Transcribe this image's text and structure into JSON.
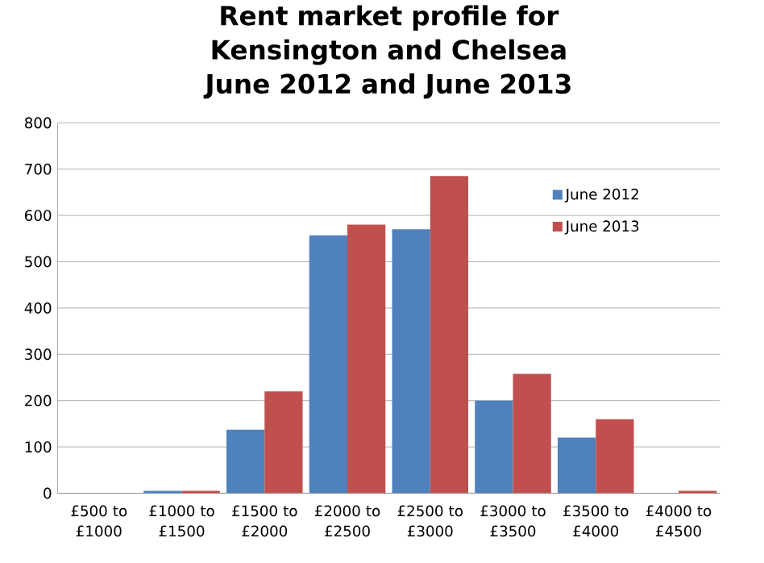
{
  "chart_data": {
    "type": "bar",
    "title": "Rent market profile for Kensington and Chelsea June 2012 and June 2013",
    "categories": [
      "£500 to £1000",
      "£1000 to £1500",
      "£1500 to £2000",
      "£2000 to £2500",
      "£2500 to £3000",
      "£3000 to £3500",
      "£3500 to £4000",
      "£4000 to £4500"
    ],
    "series": [
      {
        "name": "June 2012",
        "color": "#4f81bd",
        "values": [
          0,
          5,
          137,
          557,
          570,
          200,
          120,
          0
        ]
      },
      {
        "name": "June 2013",
        "color": "#c0504d",
        "values": [
          0,
          5,
          220,
          580,
          685,
          258,
          160,
          5
        ]
      }
    ],
    "ylim": [
      0,
      800
    ],
    "yticks": [
      0,
      100,
      200,
      300,
      400,
      500,
      600,
      700,
      800
    ],
    "grid": "y",
    "legend": "right"
  }
}
